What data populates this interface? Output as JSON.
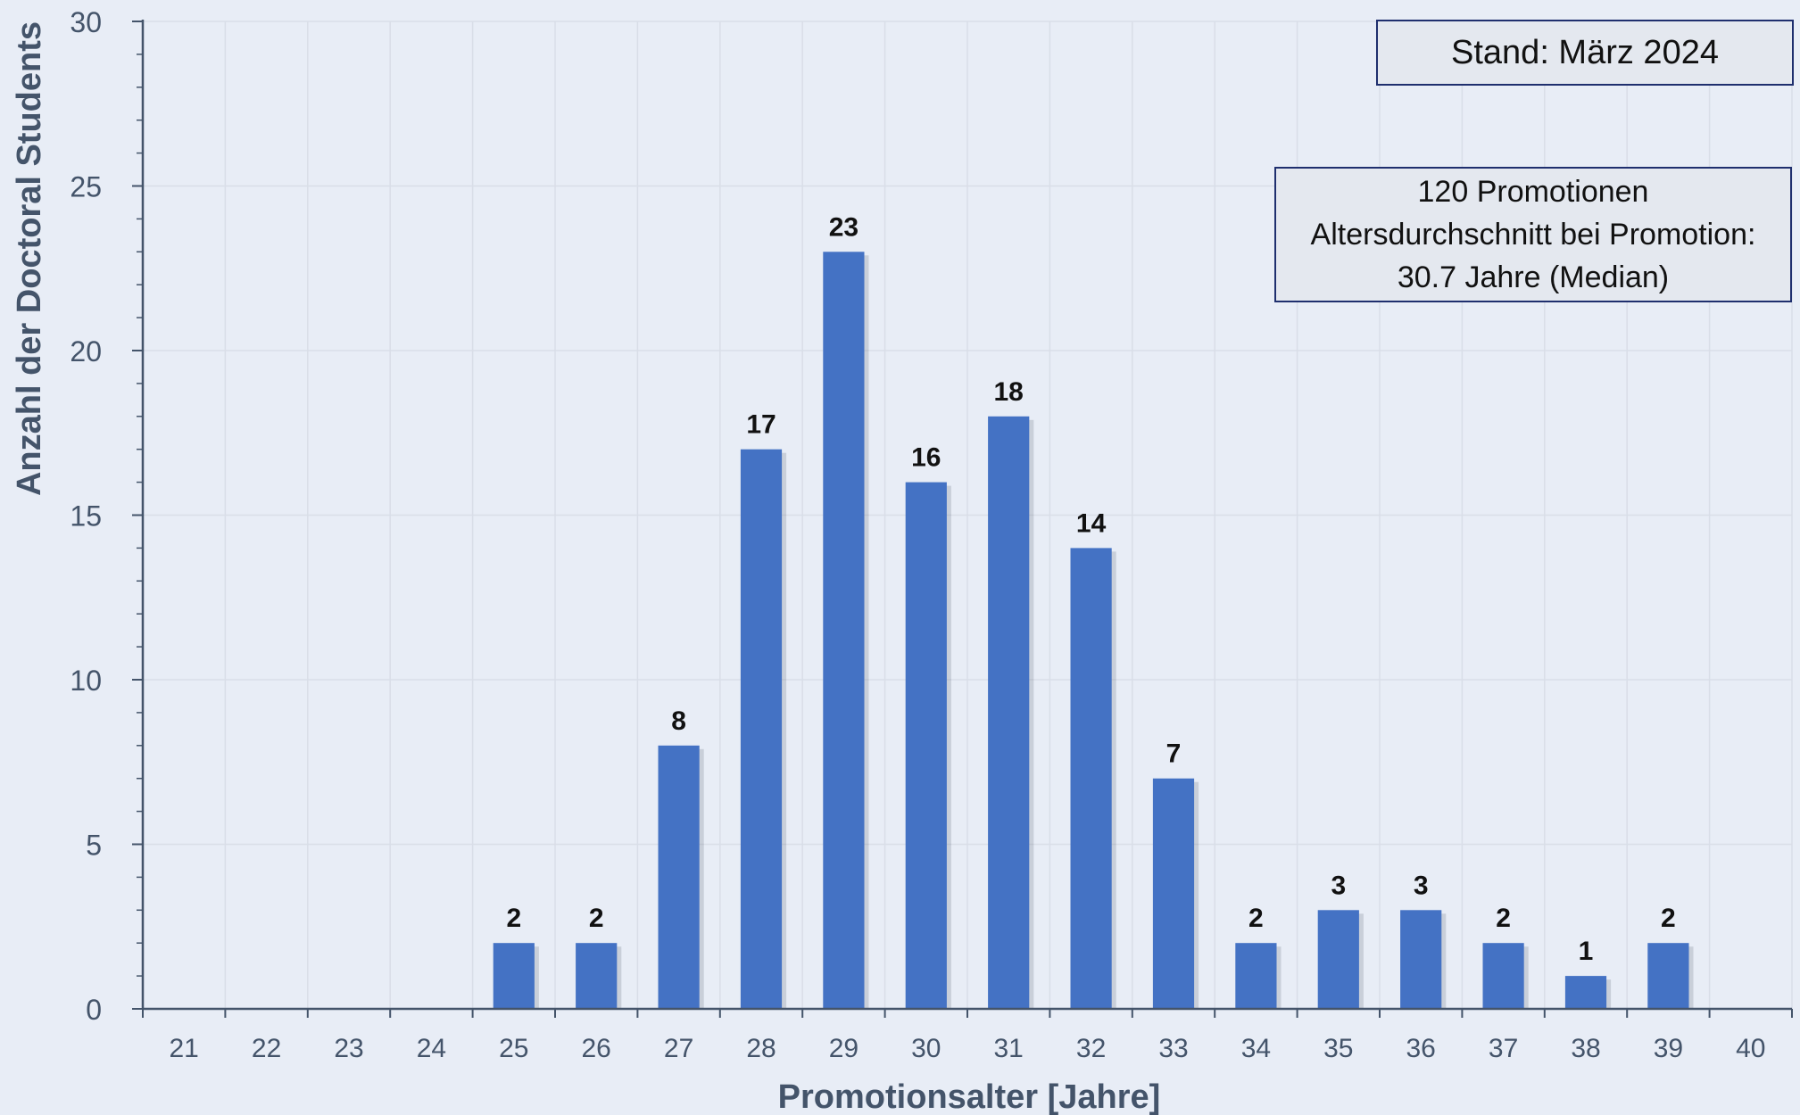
{
  "chart_data": {
    "type": "bar",
    "title": "",
    "xlabel": "Promotionsalter [Jahre]",
    "ylabel": "Anzahl der Doctoral Students",
    "categories": [
      "21",
      "22",
      "23",
      "24",
      "25",
      "26",
      "27",
      "28",
      "29",
      "30",
      "31",
      "32",
      "33",
      "34",
      "35",
      "36",
      "37",
      "38",
      "39",
      "40"
    ],
    "values": [
      0,
      0,
      0,
      0,
      2,
      2,
      8,
      17,
      23,
      16,
      18,
      14,
      7,
      2,
      3,
      3,
      2,
      1,
      2,
      0
    ],
    "data_labels": [
      "",
      "",
      "",
      "",
      "2",
      "2",
      "8",
      "17",
      "23",
      "16",
      "18",
      "14",
      "7",
      "2",
      "3",
      "3",
      "2",
      "1",
      "2",
      ""
    ],
    "ylim": [
      0,
      30
    ],
    "yticks": [
      "0",
      "5",
      "10",
      "15",
      "20",
      "25",
      "30"
    ],
    "grid": true,
    "bar_color": "#4472c4",
    "axis_color": "#44546a",
    "annotations": {
      "stand": "Stand: März 2024",
      "stats_lines": [
        "120 Promotionen",
        "Altersdurchschnitt  bei Promotion:",
        "30.7 Jahre (Median)"
      ]
    }
  }
}
